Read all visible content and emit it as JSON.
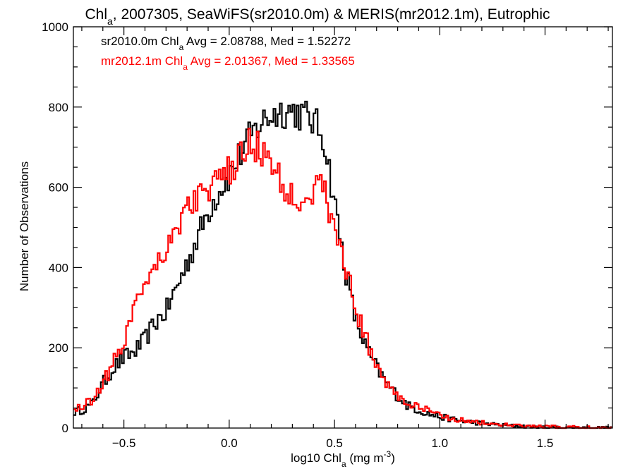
{
  "chart_data": {
    "type": "histogram-step",
    "title": {
      "prefix": "Chl",
      "sub": "a",
      "suffix": ", 2007305, SeaWiFS(sr2010.0m) & MERIS(mr2012.1m), Eutrophic"
    },
    "xlabel": {
      "prefix": "log10 Chl",
      "sub": "a",
      "mid": " (mg m",
      "sup": "-3",
      "suffix": ")"
    },
    "ylabel": "Number of Observations",
    "xlim": [
      -0.74,
      1.82
    ],
    "ylim": [
      0,
      1000
    ],
    "xticks": [
      -0.5,
      0.0,
      0.5,
      1.0,
      1.5
    ],
    "xtick_labels": [
      "−0.5",
      "0.0",
      "0.5",
      "1.0",
      "1.5"
    ],
    "yticks": [
      0,
      200,
      400,
      600,
      800,
      1000
    ],
    "ytick_labels": [
      "0",
      "200",
      "400",
      "600",
      "800",
      "1000"
    ],
    "legend": [
      {
        "prefix": "sr2010.0m Chl",
        "sub": "a",
        "suffix": " Avg = 2.08788, Med = 1.52272",
        "color": "#000000"
      },
      {
        "prefix": "mr2012.1m Chl",
        "sub": "a",
        "suffix": " Avg = 2.01367, Med = 1.33565",
        "color": "#ff0000"
      }
    ],
    "series": [
      {
        "color": "#000000",
        "profile": [
          [
            -0.74,
            40
          ],
          [
            -0.7,
            45
          ],
          [
            -0.65,
            60
          ],
          [
            -0.6,
            110
          ],
          [
            -0.55,
            150
          ],
          [
            -0.5,
            175
          ],
          [
            -0.45,
            190
          ],
          [
            -0.4,
            220
          ],
          [
            -0.35,
            265
          ],
          [
            -0.3,
            290
          ],
          [
            -0.25,
            350
          ],
          [
            -0.2,
            410
          ],
          [
            -0.15,
            475
          ],
          [
            -0.1,
            540
          ],
          [
            -0.05,
            590
          ],
          [
            0.0,
            630
          ],
          [
            0.05,
            680
          ],
          [
            0.1,
            725
          ],
          [
            0.15,
            760
          ],
          [
            0.2,
            780
          ],
          [
            0.25,
            790
          ],
          [
            0.3,
            792
          ],
          [
            0.35,
            780
          ],
          [
            0.4,
            765
          ],
          [
            0.45,
            725
          ],
          [
            0.5,
            565
          ],
          [
            0.55,
            400
          ],
          [
            0.6,
            270
          ],
          [
            0.65,
            200
          ],
          [
            0.7,
            150
          ],
          [
            0.75,
            110
          ],
          [
            0.8,
            80
          ],
          [
            0.85,
            55
          ],
          [
            0.9,
            45
          ],
          [
            0.95,
            35
          ],
          [
            1.0,
            28
          ],
          [
            1.1,
            18
          ],
          [
            1.2,
            12
          ],
          [
            1.3,
            7
          ],
          [
            1.4,
            4
          ],
          [
            1.5,
            2
          ],
          [
            1.6,
            1
          ],
          [
            1.7,
            1
          ],
          [
            1.82,
            0
          ]
        ]
      },
      {
        "color": "#ff0000",
        "profile": [
          [
            -0.74,
            45
          ],
          [
            -0.7,
            55
          ],
          [
            -0.65,
            70
          ],
          [
            -0.6,
            115
          ],
          [
            -0.55,
            160
          ],
          [
            -0.5,
            215
          ],
          [
            -0.45,
            310
          ],
          [
            -0.4,
            370
          ],
          [
            -0.35,
            410
          ],
          [
            -0.3,
            450
          ],
          [
            -0.25,
            500
          ],
          [
            -0.2,
            545
          ],
          [
            -0.15,
            580
          ],
          [
            -0.1,
            595
          ],
          [
            -0.05,
            610
          ],
          [
            0.0,
            640
          ],
          [
            0.05,
            670
          ],
          [
            0.1,
            715
          ],
          [
            0.15,
            695
          ],
          [
            0.2,
            655
          ],
          [
            0.25,
            605
          ],
          [
            0.3,
            580
          ],
          [
            0.35,
            575
          ],
          [
            0.4,
            595
          ],
          [
            0.45,
            600
          ],
          [
            0.5,
            490
          ],
          [
            0.55,
            410
          ],
          [
            0.6,
            300
          ],
          [
            0.65,
            220
          ],
          [
            0.7,
            160
          ],
          [
            0.75,
            110
          ],
          [
            0.8,
            80
          ],
          [
            0.85,
            60
          ],
          [
            0.9,
            50
          ],
          [
            0.95,
            42
          ],
          [
            1.0,
            32
          ],
          [
            1.1,
            20
          ],
          [
            1.2,
            13
          ],
          [
            1.3,
            8
          ],
          [
            1.4,
            5
          ],
          [
            1.5,
            3
          ],
          [
            1.6,
            2
          ],
          [
            1.7,
            1
          ],
          [
            1.82,
            0
          ]
        ]
      }
    ]
  }
}
